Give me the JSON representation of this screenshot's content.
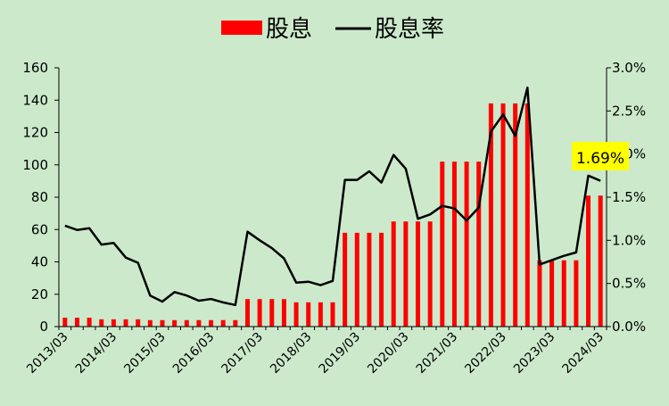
{
  "chart_data": {
    "type": "bar+line",
    "legend": [
      {
        "name": "股息",
        "kind": "bar",
        "color": "#FF0000"
      },
      {
        "name": "股息率",
        "kind": "line",
        "color": "#000000"
      }
    ],
    "legend_position": "top-center",
    "grid": false,
    "x_tick_labels": [
      "2013/03",
      "2014/03",
      "2015/03",
      "2016/03",
      "2017/03",
      "2018/03",
      "2019/03",
      "2020/03",
      "2021/03",
      "2022/03",
      "2023/03",
      "2024/03"
    ],
    "left_axis": {
      "min": 0,
      "max": 160,
      "step": 20,
      "ticks": [
        "0",
        "20",
        "40",
        "60",
        "80",
        "100",
        "120",
        "140",
        "160"
      ]
    },
    "right_axis": {
      "min": 0,
      "max": 3.0,
      "step": 0.5,
      "ticks": [
        "0.0%",
        "0.5%",
        "1.0%",
        "1.5%",
        "2.0%",
        "2.5%",
        "3.0%"
      ],
      "unit": "%"
    },
    "series": [
      {
        "name": "股息",
        "type": "bar",
        "axis": "left",
        "values": [
          5.5,
          5.5,
          5.5,
          4.5,
          4.5,
          4.5,
          4.5,
          4,
          4,
          4,
          4,
          4,
          4,
          4,
          4,
          17,
          17,
          17,
          17,
          15,
          15,
          15,
          15,
          58,
          58,
          58,
          58,
          65,
          65,
          65,
          65,
          102,
          102,
          102,
          102,
          138,
          138,
          138,
          138,
          41,
          41,
          41,
          41,
          81,
          81
        ]
      },
      {
        "name": "股息率",
        "type": "line",
        "axis": "right",
        "values": [
          1.17,
          1.12,
          1.14,
          0.95,
          0.97,
          0.8,
          0.74,
          0.36,
          0.29,
          0.4,
          0.36,
          0.3,
          0.32,
          0.28,
          0.25,
          1.1,
          1.0,
          0.91,
          0.79,
          0.51,
          0.52,
          0.48,
          0.53,
          1.7,
          1.7,
          1.8,
          1.67,
          1.99,
          1.83,
          1.25,
          1.3,
          1.4,
          1.37,
          1.23,
          1.38,
          2.26,
          2.46,
          2.21,
          2.77,
          0.72,
          0.77,
          0.82,
          0.86,
          1.75,
          1.69
        ]
      }
    ],
    "annotation": {
      "text": "1.69%",
      "color": "#FFFF00"
    }
  }
}
